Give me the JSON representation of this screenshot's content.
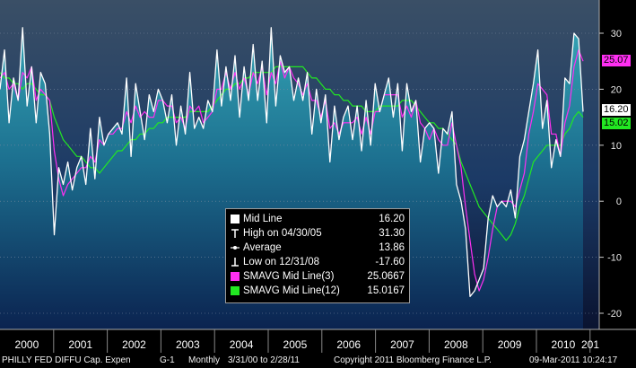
{
  "chart_data": {
    "type": "line",
    "title": "PHILLY FED DIFFU Cap. Expen",
    "y_ticks": [
      30,
      20,
      10,
      0,
      -10,
      -20
    ],
    "ylim": [
      -22,
      36
    ],
    "x_labels": [
      "2000",
      "2001",
      "2002",
      "2003",
      "2004",
      "2005",
      "2006",
      "2007",
      "2008",
      "2009",
      "2010",
      "201"
    ],
    "series": [
      {
        "name": "Mid Line",
        "color": "#ffffff",
        "values": [
          20,
          27,
          14,
          22,
          18,
          31,
          17,
          24,
          14,
          23,
          21,
          12,
          -6,
          6,
          3,
          7,
          2,
          6,
          8,
          3,
          13,
          4,
          15,
          10,
          12,
          13,
          14,
          12,
          22,
          8,
          21,
          16,
          11,
          19,
          16,
          20,
          18,
          14,
          19,
          10,
          17,
          12,
          23,
          13,
          15,
          13,
          18,
          16,
          27,
          17,
          24,
          18,
          26,
          15,
          24,
          18,
          28,
          18,
          25,
          14,
          31,
          17,
          26,
          23,
          24,
          18,
          22,
          18,
          23,
          12,
          20,
          14,
          19,
          7,
          17,
          11,
          15,
          17,
          11,
          17,
          9,
          18,
          10,
          21,
          16,
          19,
          22,
          15,
          21,
          9,
          21,
          16,
          18,
          7,
          13,
          14,
          13,
          5,
          13,
          12,
          16,
          3,
          0,
          -5,
          -17,
          -16,
          -14,
          -12,
          -3,
          1,
          -1,
          0,
          -1,
          2,
          -3,
          8,
          11,
          16,
          21,
          27,
          13,
          18,
          6,
          11,
          8,
          22,
          21,
          30,
          29,
          16
        ]
      },
      {
        "name": "SMAVG Mid Line(3)",
        "color": "#ff2ff2",
        "values": [
          22,
          23,
          20,
          21,
          18,
          23,
          22,
          24,
          18,
          20,
          19,
          18,
          9,
          4,
          1,
          3,
          4,
          5,
          6,
          6,
          8,
          7,
          11,
          10,
          12,
          12,
          13,
          13,
          16,
          14,
          17,
          15,
          16,
          15,
          15,
          18,
          18,
          17,
          17,
          14,
          15,
          13,
          17,
          16,
          17,
          14,
          15,
          16,
          20,
          20,
          23,
          20,
          23,
          20,
          22,
          19,
          23,
          21,
          24,
          19,
          23,
          21,
          25,
          22,
          24,
          22,
          21,
          19,
          21,
          18,
          18,
          15,
          18,
          13,
          14,
          12,
          14,
          14,
          14,
          15,
          12,
          15,
          12,
          16,
          16,
          19,
          19,
          19,
          19,
          15,
          17,
          15,
          18,
          14,
          13,
          11,
          13,
          11,
          10,
          10,
          14,
          10,
          6,
          -1,
          -7,
          -13,
          -16,
          -14,
          -10,
          -5,
          -1,
          0,
          0,
          0,
          -1,
          2,
          5,
          12,
          16,
          21,
          20,
          19,
          12,
          12,
          8,
          14,
          17,
          24,
          27,
          25
        ]
      },
      {
        "name": "SMAVG Mid Line(12)",
        "color": "#22e822",
        "values": [
          23,
          22,
          22,
          21,
          21,
          20,
          21,
          21,
          20,
          19,
          19,
          18,
          15,
          13,
          11,
          10,
          9,
          8,
          8,
          7,
          6,
          6,
          5,
          6,
          7,
          8,
          9,
          9,
          10,
          11,
          11,
          12,
          12,
          13,
          13,
          14,
          14,
          15,
          15,
          15,
          15,
          15,
          16,
          16,
          16,
          16,
          16,
          17,
          18,
          19,
          20,
          20,
          21,
          21,
          22,
          22,
          23,
          23,
          23,
          23,
          23,
          24,
          24,
          24,
          24,
          24,
          24,
          24,
          23,
          22,
          22,
          21,
          20,
          20,
          19,
          19,
          18,
          18,
          17,
          17,
          17,
          16,
          16,
          16,
          17,
          17,
          17,
          17,
          17,
          18,
          18,
          18,
          17,
          16,
          15,
          14,
          14,
          13,
          13,
          12,
          11,
          10,
          7,
          5,
          3,
          1,
          -1,
          -2,
          -3,
          -4,
          -5,
          -6,
          -7,
          -6,
          -4,
          -1,
          1,
          4,
          7,
          8,
          9,
          10,
          10,
          10,
          10,
          12,
          13,
          15,
          16,
          15
        ]
      }
    ],
    "legend": [
      {
        "label": "Mid Line",
        "value": "16.20",
        "symbol": "white-square"
      },
      {
        "label": "High on 04/30/05",
        "value": "31.30",
        "symbol": "high-marker"
      },
      {
        "label": "Average",
        "value": "13.86",
        "symbol": "average-marker"
      },
      {
        "label": "Low on 12/31/08",
        "value": "-17.60",
        "symbol": "low-marker"
      },
      {
        "label": "SMAVG Mid Line(3)",
        "value": "25.0667",
        "symbol": "magenta-square"
      },
      {
        "label": "SMAVG Mid Line(12)",
        "value": "15.0167",
        "symbol": "green-square"
      }
    ],
    "last_value_badges": [
      {
        "text": "25.07",
        "bg": "#ff2ff2",
        "fg": "#000000",
        "value": 25.07
      },
      {
        "text": "16.20",
        "bg": "#ffffff",
        "fg": "#000000",
        "value": 16.2
      },
      {
        "text": "15.02",
        "bg": "#22e822",
        "fg": "#000000",
        "value": 15.02
      }
    ]
  },
  "footer": {
    "title": "PHILLY FED DIFFU Cap. Expen",
    "chart_id": "G-1",
    "frequency": "Monthly",
    "range": "3/31/00 to 2/28/11",
    "copyright": "Copyright 2011 Bloomberg Finance L.P.",
    "timestamp": "09-Mar-2011 10:24:17"
  },
  "colors": {
    "background": "#000000",
    "area_top": "#2f8ea3",
    "area_bottom": "#0a1f4a",
    "frame": "#888888"
  }
}
